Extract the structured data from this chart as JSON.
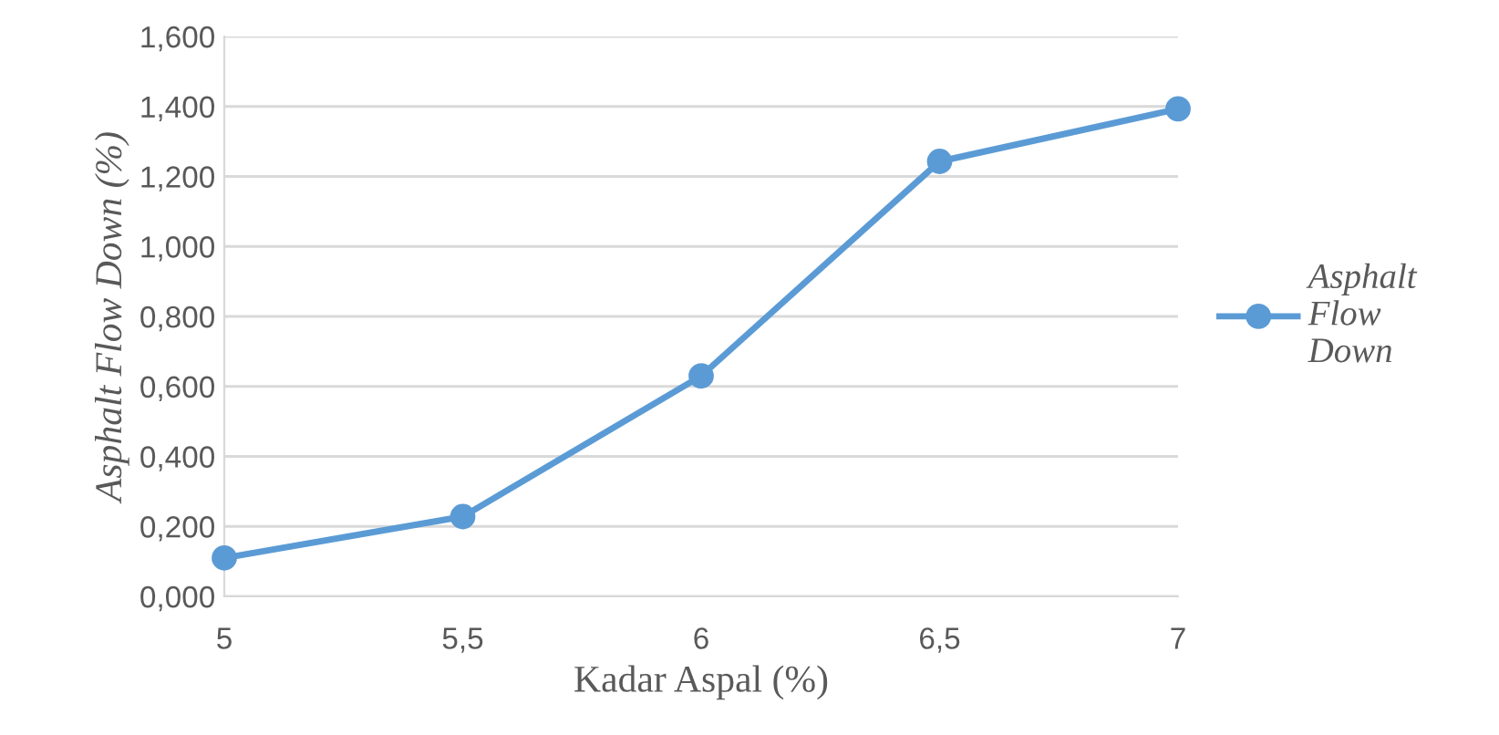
{
  "chart_data": {
    "type": "line",
    "xlabel": "Kadar Aspal (%)",
    "ylabel": "Asphalt Flow Down (%)",
    "x": [
      5,
      5.5,
      6,
      6.5,
      7
    ],
    "series": [
      {
        "name": "Asphalt Flow Down",
        "color": "#5b9bd5",
        "values": [
          0.11,
          0.228,
          0.63,
          1.243,
          1.393
        ]
      }
    ],
    "xlim": [
      5,
      7
    ],
    "xticks": [
      5,
      {
        "value": 5.5,
        "label": "5,5"
      },
      6,
      {
        "value": 6.5,
        "label": "6,5"
      },
      7
    ],
    "ylim": [
      0,
      1.6
    ],
    "yticks": [
      {
        "value": 0,
        "label": "0,000"
      },
      {
        "value": 0.2,
        "label": "0,200"
      },
      {
        "value": 0.4,
        "label": "0,400"
      },
      {
        "value": 0.6,
        "label": "0,600"
      },
      {
        "value": 0.8,
        "label": "0,800"
      },
      {
        "value": 1.0,
        "label": "1,000"
      },
      {
        "value": 1.2,
        "label": "1,200"
      },
      {
        "value": 1.4,
        "label": "1,400"
      },
      {
        "value": 1.6,
        "label": "1,600"
      }
    ],
    "grid": "y",
    "legend": "right",
    "marker": "circle",
    "line_style": "solid"
  }
}
